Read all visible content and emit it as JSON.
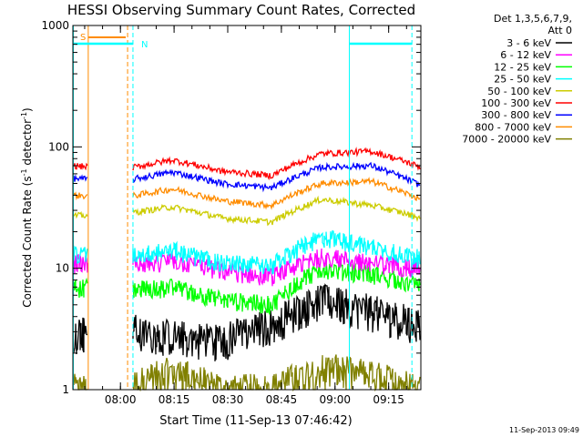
{
  "chart_data": {
    "type": "line",
    "title": "HESSI Observing Summary Count Rates, Corrected",
    "xlabel": "Start Time (11-Sep-13 07:46:42)",
    "ylabel_main": "Corrected Count Rate (s",
    "ylabel_sup1": "-1",
    "ylabel_mid": " detector",
    "ylabel_sup2": "-1",
    "ylabel_end": ")",
    "yscale": "log",
    "xlim": [
      "07:46:42",
      "09:24:00"
    ],
    "ylim": [
      1,
      1000
    ],
    "x_ticks": [
      "08:00",
      "08:15",
      "08:30",
      "08:45",
      "09:00",
      "09:15"
    ],
    "y_ticks": [
      "1",
      "10",
      "100",
      "1000"
    ],
    "legend_header": [
      "Det 1,3,5,6,7,9,",
      "Att 0"
    ],
    "legend_position": "outside-right",
    "timestamp": "11-Sep-2013 09:49",
    "attenuator_label": "S",
    "night_label": "N",
    "state_lines_color": "#00ffff",
    "attenuator_color": "#ff8c00",
    "data_gap": [
      "07:51:00",
      "08:03:30"
    ],
    "series": [
      {
        "name": "3 - 6 keV",
        "color": "#000000",
        "levels": [
          3.0,
          3.2,
          2.8,
          2.6,
          3.5,
          5.5,
          4.5,
          3.5
        ]
      },
      {
        "name": "6 - 12 keV",
        "color": "#ff00ff",
        "levels": [
          11.0,
          10.5,
          11.5,
          9.5,
          8.5,
          12.5,
          11.0,
          10.0
        ]
      },
      {
        "name": "12 - 25 keV",
        "color": "#00ff00",
        "levels": [
          7.0,
          6.5,
          7.0,
          5.5,
          5.0,
          10.0,
          9.0,
          7.0
        ]
      },
      {
        "name": "25 - 50 keV",
        "color": "#00ffff",
        "levels": [
          13.0,
          12.5,
          14.0,
          11.0,
          10.5,
          18.0,
          15.0,
          12.0
        ]
      },
      {
        "name": "50 - 100 keV",
        "color": "#cccc00",
        "levels": [
          27.0,
          28.0,
          32.0,
          26.0,
          24.0,
          37.0,
          33.0,
          26.0
        ]
      },
      {
        "name": "100 - 300 keV",
        "color": "#ff0000",
        "levels": [
          70.0,
          65.0,
          78.0,
          63.0,
          58.0,
          88.0,
          92.0,
          68.0
        ]
      },
      {
        "name": "300 - 800 keV",
        "color": "#0000ff",
        "levels": [
          55.0,
          52.0,
          62.0,
          50.0,
          46.0,
          68.0,
          70.0,
          48.0
        ]
      },
      {
        "name": "800 - 7000 keV",
        "color": "#ff8c00",
        "levels": [
          40.0,
          38.0,
          45.0,
          36.0,
          33.0,
          50.0,
          52.0,
          37.0
        ]
      },
      {
        "name": "7000 - 20000 keV",
        "color": "#808000",
        "levels": [
          1.0,
          1.0,
          1.4,
          1.0,
          1.0,
          1.5,
          1.3,
          1.0
        ]
      }
    ]
  }
}
